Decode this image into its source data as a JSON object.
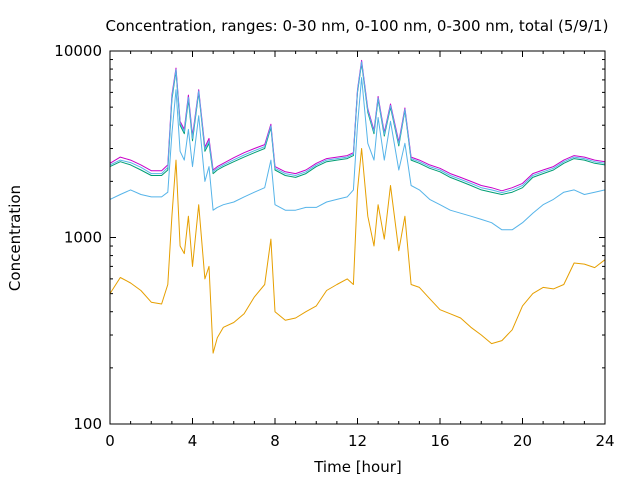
{
  "chart_data": {
    "type": "line",
    "title": "Concentration, ranges: 0-30 nm, 0-100 nm, 0-300 nm, total (5/9/1)",
    "xlabel": "Time [hour]",
    "ylabel": "Concentration",
    "xlim": [
      0,
      24
    ],
    "ylim": [
      100,
      10000
    ],
    "yscale": "log",
    "grid": false,
    "legend": "none",
    "x_ticks": [
      0,
      4,
      8,
      12,
      16,
      20,
      24
    ],
    "x_tick_labels": [
      "0",
      "4",
      "8",
      "12",
      "16",
      "20",
      "24"
    ],
    "y_ticks": [
      100,
      1000,
      10000
    ],
    "y_tick_labels": [
      "100",
      "1000",
      "10000"
    ],
    "series": [
      {
        "color": "#e69f00",
        "x": [
          0,
          0.5,
          1,
          1.5,
          2,
          2.5,
          2.8,
          3.0,
          3.2,
          3.4,
          3.6,
          3.8,
          4.0,
          4.3,
          4.6,
          4.8,
          5.0,
          5.2,
          5.5,
          6,
          6.5,
          7,
          7.5,
          7.8,
          8,
          8.5,
          9,
          9.5,
          10,
          10.5,
          11,
          11.5,
          11.8,
          12,
          12.2,
          12.5,
          12.8,
          13,
          13.3,
          13.6,
          14,
          14.3,
          14.6,
          15,
          15.5,
          16,
          16.5,
          17,
          17.5,
          18,
          18.5,
          19,
          19.5,
          20,
          20.5,
          21,
          21.5,
          22,
          22.5,
          23,
          23.5,
          24
        ],
        "y": [
          500,
          610,
          570,
          520,
          450,
          440,
          560,
          1300,
          2600,
          900,
          820,
          1300,
          700,
          1500,
          600,
          700,
          240,
          290,
          330,
          350,
          390,
          480,
          560,
          980,
          400,
          360,
          370,
          400,
          430,
          520,
          560,
          600,
          560,
          1800,
          3000,
          1300,
          900,
          1500,
          980,
          1900,
          850,
          1300,
          560,
          540,
          470,
          410,
          390,
          370,
          330,
          300,
          270,
          280,
          320,
          430,
          500,
          540,
          530,
          560,
          730,
          720,
          690,
          760
        ]
      },
      {
        "color": "#56b4e9",
        "x": [
          0,
          0.5,
          1,
          1.5,
          2,
          2.5,
          2.8,
          3.0,
          3.2,
          3.4,
          3.6,
          3.8,
          4.0,
          4.3,
          4.6,
          4.8,
          5.0,
          5.2,
          5.5,
          6,
          6.5,
          7,
          7.5,
          7.8,
          8,
          8.5,
          9,
          9.5,
          10,
          10.5,
          11,
          11.5,
          11.8,
          12,
          12.2,
          12.5,
          12.8,
          13,
          13.3,
          13.6,
          14,
          14.3,
          14.6,
          15,
          15.5,
          16,
          16.5,
          17,
          17.5,
          18,
          18.5,
          19,
          19.5,
          20,
          20.5,
          21,
          21.5,
          22,
          22.5,
          23,
          23.5,
          24
        ],
        "y": [
          1600,
          1700,
          1800,
          1700,
          1650,
          1650,
          1750,
          3600,
          6200,
          2900,
          2600,
          3800,
          2400,
          4500,
          2000,
          2400,
          1400,
          1450,
          1500,
          1550,
          1650,
          1750,
          1850,
          2600,
          1500,
          1400,
          1400,
          1450,
          1450,
          1550,
          1600,
          1650,
          1800,
          4000,
          7200,
          3200,
          2600,
          4400,
          2600,
          4200,
          2300,
          3200,
          1900,
          1800,
          1600,
          1500,
          1400,
          1350,
          1300,
          1250,
          1200,
          1100,
          1100,
          1200,
          1350,
          1500,
          1600,
          1750,
          1800,
          1700,
          1750,
          1800
        ]
      },
      {
        "color": "#009e73",
        "x": [
          0,
          0.5,
          1,
          1.5,
          2,
          2.5,
          2.8,
          3.0,
          3.2,
          3.4,
          3.6,
          3.8,
          4.0,
          4.3,
          4.6,
          4.8,
          5.0,
          5.2,
          5.5,
          6,
          6.5,
          7,
          7.5,
          7.8,
          8,
          8.5,
          9,
          9.5,
          10,
          10.5,
          11,
          11.5,
          11.8,
          12,
          12.2,
          12.5,
          12.8,
          13,
          13.3,
          13.6,
          14,
          14.3,
          14.6,
          15,
          15.5,
          16,
          16.5,
          17,
          17.5,
          18,
          18.5,
          19,
          19.5,
          20,
          20.5,
          21,
          21.5,
          22,
          22.5,
          23,
          23.5,
          24
        ],
        "y": [
          2400,
          2550,
          2450,
          2300,
          2150,
          2150,
          2300,
          5500,
          7800,
          4000,
          3600,
          5500,
          3300,
          6000,
          2900,
          3200,
          2200,
          2300,
          2400,
          2550,
          2700,
          2850,
          3000,
          3900,
          2300,
          2150,
          2100,
          2200,
          2400,
          2550,
          2600,
          2650,
          2750,
          6000,
          8600,
          4700,
          3600,
          5500,
          3500,
          5000,
          3100,
          4800,
          2600,
          2500,
          2350,
          2250,
          2100,
          2000,
          1900,
          1800,
          1750,
          1700,
          1750,
          1850,
          2100,
          2200,
          2300,
          2500,
          2650,
          2600,
          2500,
          2450
        ]
      },
      {
        "color": "#c800c8",
        "x": [
          0,
          0.5,
          1,
          1.5,
          2,
          2.5,
          2.8,
          3.0,
          3.2,
          3.4,
          3.6,
          3.8,
          4.0,
          4.3,
          4.6,
          4.8,
          5.0,
          5.2,
          5.5,
          6,
          6.5,
          7,
          7.5,
          7.8,
          8,
          8.5,
          9,
          9.5,
          10,
          10.5,
          11,
          11.5,
          11.8,
          12,
          12.2,
          12.5,
          12.8,
          13,
          13.3,
          13.6,
          14,
          14.3,
          14.6,
          15,
          15.5,
          16,
          16.5,
          17,
          17.5,
          18,
          18.5,
          19,
          19.5,
          20,
          20.5,
          21,
          21.5,
          22,
          22.5,
          23,
          23.5,
          24
        ],
        "y": [
          2500,
          2700,
          2600,
          2450,
          2280,
          2280,
          2450,
          5800,
          8100,
          4200,
          3800,
          5800,
          3500,
          6200,
          3050,
          3400,
          2300,
          2400,
          2500,
          2680,
          2850,
          3000,
          3150,
          4050,
          2400,
          2250,
          2200,
          2300,
          2500,
          2650,
          2700,
          2750,
          2850,
          6200,
          8900,
          4900,
          3750,
          5700,
          3650,
          5200,
          3250,
          4950,
          2700,
          2600,
          2450,
          2350,
          2200,
          2100,
          2000,
          1900,
          1850,
          1780,
          1850,
          1950,
          2200,
          2300,
          2400,
          2600,
          2750,
          2700,
          2600,
          2550
        ]
      },
      {
        "color": "#56b4e9",
        "x": [
          0,
          0.5,
          1,
          1.5,
          2,
          2.5,
          2.8,
          3.0,
          3.2,
          3.4,
          3.6,
          3.8,
          4.0,
          4.3,
          4.6,
          4.8,
          5.0,
          5.2,
          5.5,
          6,
          6.5,
          7,
          7.5,
          7.8,
          8,
          8.5,
          9,
          9.5,
          10,
          10.5,
          11,
          11.5,
          11.8,
          12,
          12.2,
          12.5,
          12.8,
          13,
          13.3,
          13.6,
          14,
          14.3,
          14.6,
          15,
          15.5,
          16,
          16.5,
          17,
          17.5,
          18,
          18.5,
          19,
          19.5,
          20,
          20.5,
          21,
          21.5,
          22,
          22.5,
          23,
          23.5,
          24
        ],
        "y": [
          2450,
          2600,
          2520,
          2380,
          2200,
          2200,
          2380,
          5650,
          7950,
          4100,
          3700,
          5650,
          3400,
          6100,
          2970,
          3300,
          2250,
          2350,
          2450,
          2610,
          2770,
          2920,
          3070,
          3970,
          2350,
          2200,
          2150,
          2250,
          2450,
          2600,
          2650,
          2700,
          2800,
          6100,
          8750,
          4800,
          3680,
          5600,
          3570,
          5100,
          3170,
          4870,
          2650,
          2550,
          2400,
          2300,
          2150,
          2050,
          1950,
          1850,
          1800,
          1740,
          1800,
          1900,
          2150,
          2250,
          2350,
          2550,
          2700,
          2650,
          2550,
          2500
        ]
      }
    ]
  }
}
